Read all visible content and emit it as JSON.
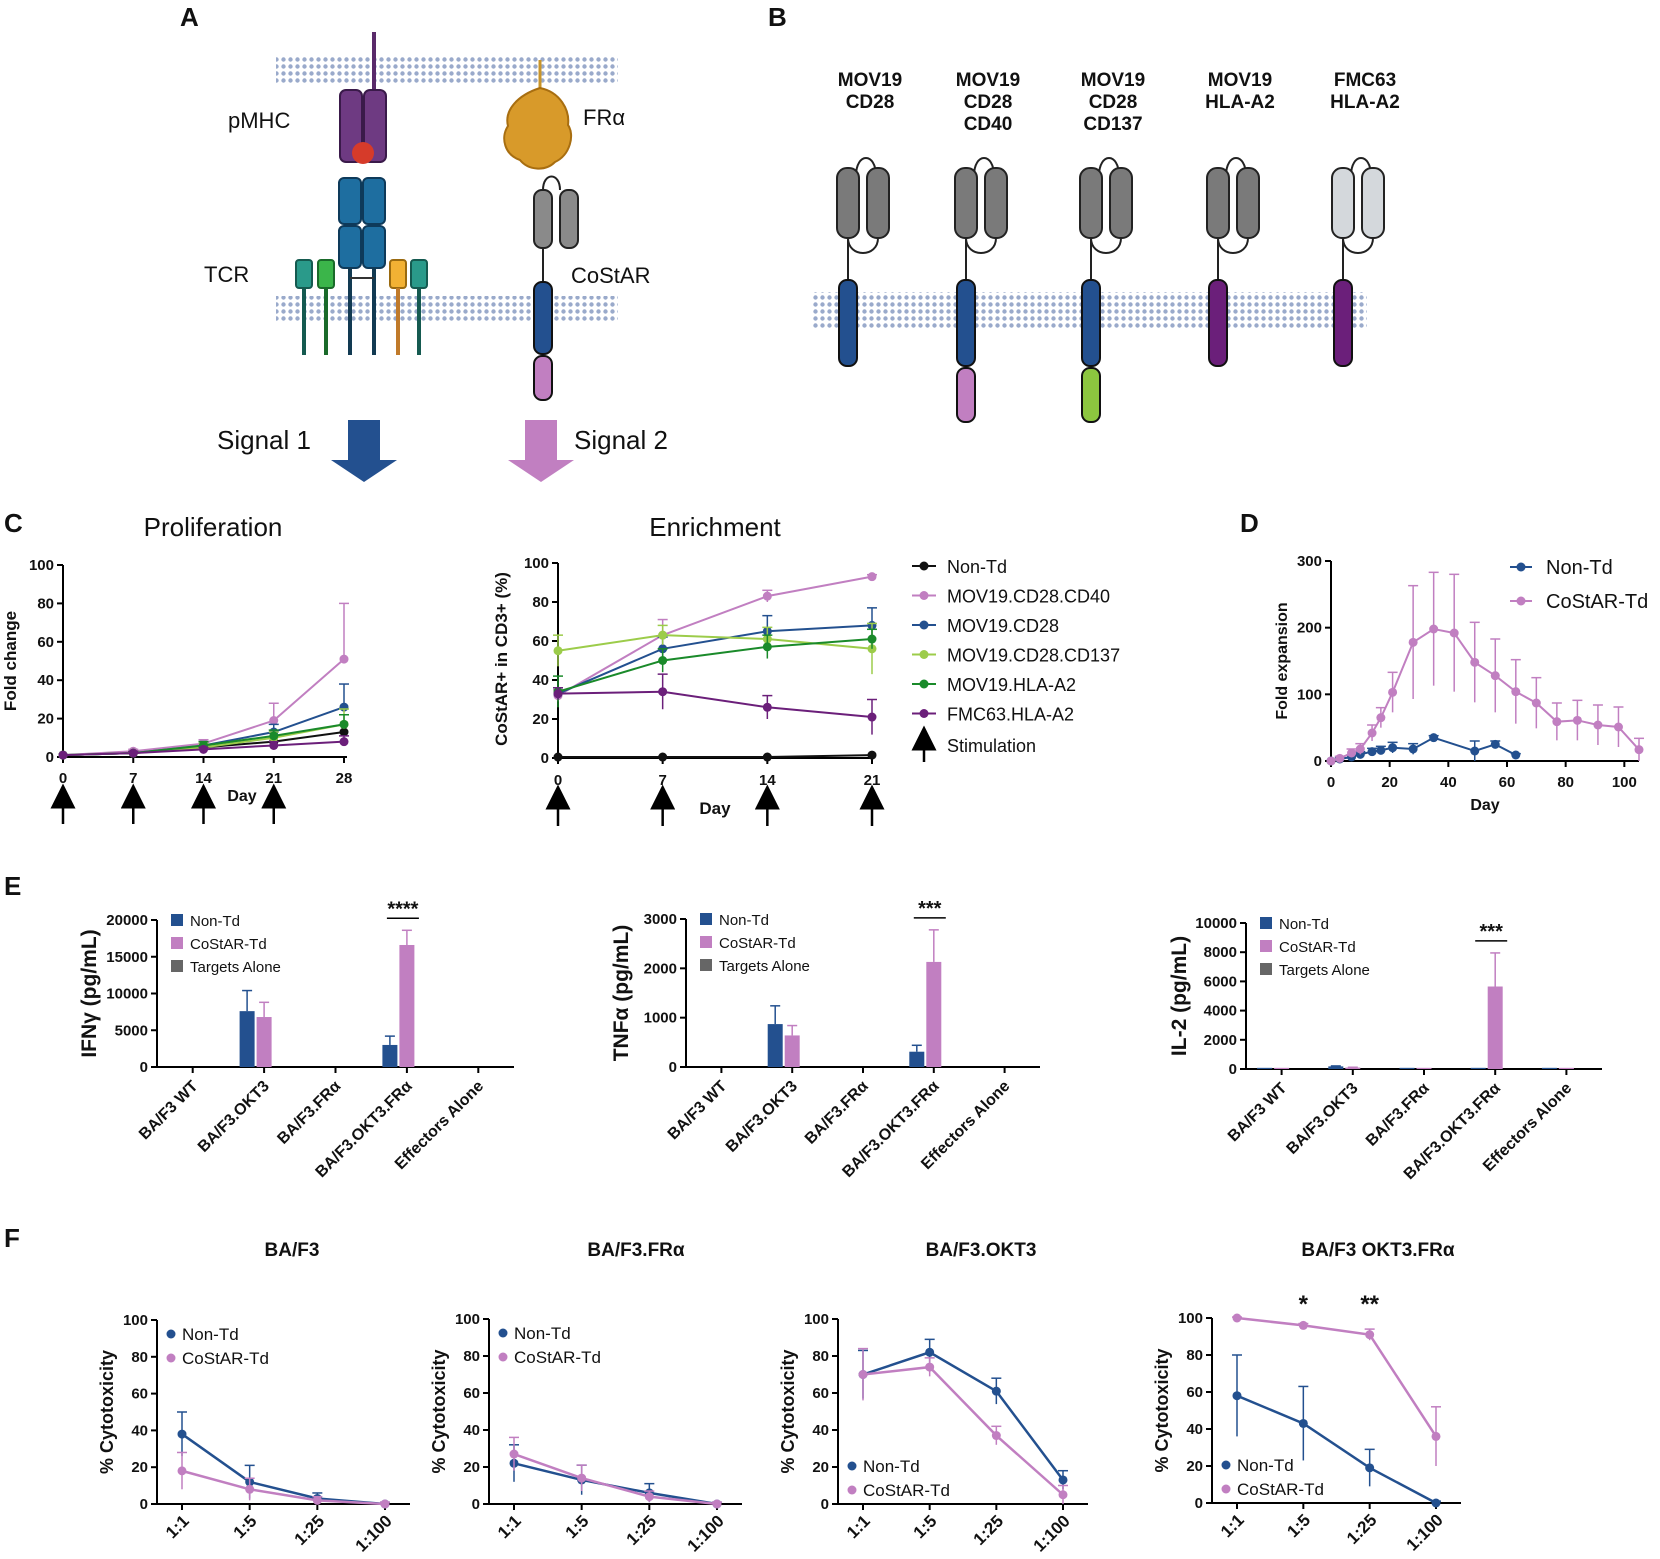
{
  "panel_labels": {
    "a": "A",
    "b": "B",
    "c": "C",
    "d": "D",
    "e": "E",
    "f": "F"
  },
  "colors": {
    "black": "#111111",
    "pink": "#c17fc1",
    "blue": "#23508f",
    "lightgreen": "#9ccc4a",
    "green": "#1a8a2a",
    "purple": "#6b1f7a",
    "grey": "#666666",
    "teal": "#1a6fa0",
    "orange": "#d4902a"
  },
  "panel_a": {
    "pmhc": "pMHC",
    "fra": "FRα",
    "tcr": "TCR",
    "costar": "CoStAR",
    "signal1": "Signal 1",
    "signal2": "Signal 2"
  },
  "panel_b": {
    "constructs": [
      {
        "line1": "MOV19",
        "line2": "CD28",
        "line3": "",
        "binder": "dark",
        "tm": "blue",
        "tail": "none"
      },
      {
        "line1": "MOV19",
        "line2": "CD28",
        "line3": "CD40",
        "binder": "dark",
        "tm": "blue",
        "tail": "pink"
      },
      {
        "line1": "MOV19",
        "line2": "CD28",
        "line3": "CD137",
        "binder": "dark",
        "tm": "blue",
        "tail": "green"
      },
      {
        "line1": "MOV19",
        "line2": "HLA-A2",
        "line3": "",
        "binder": "dark",
        "tm": "purple",
        "tail": "none"
      },
      {
        "line1": "FMC63",
        "line2": "HLA-A2",
        "line3": "",
        "binder": "light",
        "tm": "purple",
        "tail": "none"
      }
    ]
  },
  "chart_data": [
    {
      "id": "C-proliferation",
      "type": "line",
      "title": "Proliferation",
      "xlabel": "Day",
      "ylabel": "Fold change",
      "x": [
        0,
        7,
        14,
        21,
        28
      ],
      "xlim": [
        0,
        28
      ],
      "ylim": [
        0,
        100
      ],
      "yticks": [
        0,
        20,
        40,
        60,
        80,
        100
      ],
      "stimulation_days": [
        0,
        7,
        14,
        21
      ],
      "series": [
        {
          "name": "Non-Td",
          "color": "#111111",
          "values": [
            1,
            2,
            5,
            8,
            13
          ]
        },
        {
          "name": "MOV19.CD28.CD40",
          "color": "#c17fc1",
          "values": [
            1,
            3,
            7,
            19,
            51
          ],
          "err": [
            0,
            1,
            2,
            9,
            29
          ]
        },
        {
          "name": "MOV19.CD28",
          "color": "#23508f",
          "values": [
            1,
            2,
            6,
            13,
            26
          ],
          "err": [
            0,
            1,
            2,
            4,
            12
          ]
        },
        {
          "name": "MOV19.CD28.CD137",
          "color": "#9ccc4a",
          "values": [
            1,
            2,
            5,
            10,
            17
          ],
          "err": [
            0,
            1,
            2,
            3,
            8
          ]
        },
        {
          "name": "MOV19.HLA-A2",
          "color": "#1a8a2a",
          "values": [
            1,
            2,
            6,
            11,
            17
          ],
          "err": [
            0,
            1,
            2,
            3,
            5
          ]
        },
        {
          "name": "FMC63.HLA-A2",
          "color": "#6b1f7a",
          "values": [
            1,
            2,
            4,
            6,
            8
          ],
          "err": [
            0,
            1,
            1,
            2,
            3
          ]
        }
      ]
    },
    {
      "id": "C-enrichment",
      "type": "line",
      "title": "Enrichment",
      "xlabel": "Day",
      "ylabel": "CoStAR+ in CD3+ (%)",
      "x": [
        0,
        7,
        14,
        21
      ],
      "xlim": [
        0,
        21
      ],
      "ylim": [
        0,
        100
      ],
      "yticks": [
        0,
        20,
        40,
        60,
        80,
        100
      ],
      "stimulation_days": [
        0,
        7,
        14,
        21
      ],
      "series": [
        {
          "name": "Non-Td",
          "color": "#111111",
          "values": [
            0.5,
            0.5,
            0.5,
            1.5
          ],
          "err": [
            0,
            0,
            0,
            0
          ]
        },
        {
          "name": "MOV19.CD28.CD40",
          "color": "#c17fc1",
          "values": [
            32,
            63,
            83,
            93
          ],
          "err": [
            3,
            8,
            3,
            1
          ]
        },
        {
          "name": "MOV19.CD28",
          "color": "#23508f",
          "values": [
            33,
            56,
            65,
            68
          ],
          "err": [
            3,
            6,
            8,
            9
          ]
        },
        {
          "name": "MOV19.CD28.CD137",
          "color": "#9ccc4a",
          "values": [
            55,
            63,
            61,
            56
          ],
          "err": [
            8,
            5,
            6,
            13
          ]
        },
        {
          "name": "MOV19.HLA-A2",
          "color": "#1a8a2a",
          "values": [
            34,
            50,
            57,
            61
          ],
          "err": [
            8,
            6,
            6,
            5
          ]
        },
        {
          "name": "FMC63.HLA-A2",
          "color": "#6b1f7a",
          "values": [
            33,
            34,
            26,
            21
          ],
          "err": [
            3,
            9,
            6,
            9
          ]
        }
      ],
      "legend": [
        "Non-Td",
        "MOV19.CD28.CD40",
        "MOV19.CD28",
        "MOV19.CD28.CD137",
        "MOV19.HLA-A2",
        "FMC63.HLA-A2"
      ],
      "stimulation_label": "Stimulation"
    },
    {
      "id": "D",
      "type": "line",
      "title": "",
      "xlabel": "Day",
      "ylabel": "Fold expansion",
      "xlim": [
        0,
        105
      ],
      "ylim": [
        0,
        300
      ],
      "xticks": [
        0,
        20,
        40,
        60,
        80,
        100
      ],
      "yticks": [
        0,
        100,
        200,
        300
      ],
      "series": [
        {
          "name": "Non-Td",
          "color": "#23508f",
          "x": [
            0,
            3,
            7,
            10,
            14,
            17,
            21,
            28,
            35,
            49,
            56,
            63
          ],
          "values": [
            0,
            3,
            6,
            10,
            14,
            16,
            20,
            18,
            35,
            15,
            25,
            9
          ],
          "err": [
            0,
            2,
            3,
            4,
            5,
            6,
            8,
            8,
            3,
            15,
            5,
            2
          ]
        },
        {
          "name": "CoStAR-Td",
          "color": "#c17fc1",
          "x": [
            0,
            3,
            7,
            10,
            14,
            17,
            21,
            28,
            35,
            42,
            49,
            56,
            63,
            70,
            77,
            84,
            91,
            98,
            105
          ],
          "values": [
            0,
            4,
            12,
            18,
            42,
            65,
            103,
            178,
            198,
            192,
            148,
            128,
            104,
            87,
            59,
            61,
            54,
            51,
            17
          ],
          "err": [
            0,
            3,
            6,
            8,
            12,
            15,
            30,
            85,
            85,
            88,
            60,
            55,
            48,
            38,
            28,
            30,
            30,
            30,
            17
          ]
        }
      ]
    },
    {
      "id": "E-IFNg",
      "type": "bar",
      "ylabel": "IFNγ (pg/mL)",
      "ylim": [
        0,
        20000
      ],
      "yticks": [
        0,
        5000,
        10000,
        15000,
        20000
      ],
      "categories": [
        "BA/F3 WT",
        "BA/F3.OKT3",
        "BA/F3.FRα",
        "BA/F3.OKT3.FRα",
        "Effectors Alone"
      ],
      "series": [
        {
          "name": "Non-Td",
          "color": "#23508f",
          "values": [
            0,
            7600,
            0,
            3000,
            0
          ],
          "err": [
            0,
            2800,
            0,
            1200,
            0
          ]
        },
        {
          "name": "CoStAR-Td",
          "color": "#c17fc1",
          "values": [
            0,
            6800,
            0,
            16600,
            0
          ],
          "err": [
            0,
            2000,
            0,
            2000,
            0
          ]
        },
        {
          "name": "Targets Alone",
          "color": "#666666",
          "values": [
            0,
            0,
            0,
            0,
            0
          ],
          "err": [
            0,
            0,
            0,
            0,
            0
          ]
        }
      ],
      "significance": {
        "category_index": 3,
        "label": "****"
      }
    },
    {
      "id": "E-TNFa",
      "type": "bar",
      "ylabel": "TNFα (pg/mL)",
      "ylim": [
        0,
        3000
      ],
      "yticks": [
        0,
        1000,
        2000,
        3000
      ],
      "categories": [
        "BA/F3 WT",
        "BA/F3.OKT3",
        "BA/F3.FRα",
        "BA/F3.OKT3.FRα",
        "Effectors Alone"
      ],
      "series": [
        {
          "name": "Non-Td",
          "color": "#23508f",
          "values": [
            0,
            870,
            0,
            310,
            0
          ],
          "err": [
            0,
            370,
            0,
            130,
            0
          ]
        },
        {
          "name": "CoStAR-Td",
          "color": "#c17fc1",
          "values": [
            0,
            640,
            0,
            2130,
            0
          ],
          "err": [
            0,
            200,
            0,
            650,
            0
          ]
        },
        {
          "name": "Targets Alone",
          "color": "#666666",
          "values": [
            0,
            0,
            0,
            0,
            0
          ],
          "err": [
            0,
            0,
            0,
            0,
            0
          ]
        }
      ],
      "significance": {
        "category_index": 3,
        "label": "***"
      }
    },
    {
      "id": "E-IL2",
      "type": "bar",
      "ylabel": "IL-2 (pg/mL)",
      "ylim": [
        0,
        10000
      ],
      "yticks": [
        0,
        2000,
        4000,
        6000,
        8000,
        10000
      ],
      "categories": [
        "BA/F3 WT",
        "BA/F3.OKT3",
        "BA/F3.FRα",
        "BA/F3.OKT3.FRα",
        "Effectors Alone"
      ],
      "series": [
        {
          "name": "Non-Td",
          "color": "#23508f",
          "values": [
            80,
            180,
            80,
            80,
            80
          ],
          "err": [
            0,
            30,
            0,
            0,
            0
          ]
        },
        {
          "name": "CoStAR-Td",
          "color": "#c17fc1",
          "values": [
            80,
            100,
            80,
            5650,
            80
          ],
          "err": [
            0,
            20,
            0,
            2300,
            0
          ]
        },
        {
          "name": "Targets Alone",
          "color": "#666666",
          "values": [
            0,
            0,
            0,
            0,
            0
          ],
          "err": [
            0,
            0,
            0,
            0,
            0
          ]
        }
      ],
      "significance": {
        "category_index": 3,
        "label": "***"
      }
    },
    {
      "id": "F-BAF3",
      "type": "line",
      "title": "BA/F3",
      "ylabel": "% Cytotoxicity",
      "ylim": [
        0,
        100
      ],
      "yticks": [
        0,
        20,
        40,
        60,
        80,
        100
      ],
      "categories": [
        "1:1",
        "1:5",
        "1:25",
        "1:100"
      ],
      "legend_pos": "top-left",
      "series": [
        {
          "name": "Non-Td",
          "color": "#23508f",
          "values": [
            38,
            12,
            3,
            0
          ],
          "err": [
            12,
            9,
            3,
            1
          ]
        },
        {
          "name": "CoStAR-Td",
          "color": "#c17fc1",
          "values": [
            18,
            8,
            2,
            0
          ],
          "err": [
            10,
            6,
            2,
            1
          ]
        }
      ]
    },
    {
      "id": "F-BAF3-FRa",
      "type": "line",
      "title": "BA/F3.FRα",
      "ylabel": "% Cytotoxicity",
      "ylim": [
        0,
        100
      ],
      "yticks": [
        0,
        20,
        40,
        60,
        80,
        100
      ],
      "categories": [
        "1:1",
        "1:5",
        "1:25",
        "1:100"
      ],
      "legend_pos": "top-left",
      "series": [
        {
          "name": "Non-Td",
          "color": "#23508f",
          "values": [
            22,
            13,
            6,
            0
          ],
          "err": [
            10,
            8,
            5,
            1
          ]
        },
        {
          "name": "CoStAR-Td",
          "color": "#c17fc1",
          "values": [
            27,
            14,
            4,
            0
          ],
          "err": [
            9,
            7,
            3,
            1
          ]
        }
      ]
    },
    {
      "id": "F-BAF3-OKT3",
      "type": "line",
      "title": "BA/F3.OKT3",
      "ylabel": "% Cytotoxicity",
      "ylim": [
        0,
        100
      ],
      "yticks": [
        0,
        20,
        40,
        60,
        80,
        100
      ],
      "categories": [
        "1:1",
        "1:5",
        "1:25",
        "1:100"
      ],
      "legend_pos": "bottom-left",
      "series": [
        {
          "name": "Non-Td",
          "color": "#23508f",
          "values": [
            70,
            82,
            61,
            13
          ],
          "err": [
            13,
            7,
            7,
            5
          ]
        },
        {
          "name": "CoStAR-Td",
          "color": "#c17fc1",
          "values": [
            70,
            74,
            37,
            5
          ],
          "err": [
            14,
            5,
            5,
            5
          ]
        }
      ]
    },
    {
      "id": "F-BAF3-OKT3-FRa",
      "type": "line",
      "title": "BA/F3 OKT3.FRα",
      "ylabel": "% Cytotoxicity",
      "ylim": [
        0,
        100
      ],
      "yticks": [
        0,
        20,
        40,
        60,
        80,
        100
      ],
      "categories": [
        "1:1",
        "1:5",
        "1:25",
        "1:100"
      ],
      "legend_pos": "bottom-left",
      "series": [
        {
          "name": "Non-Td",
          "color": "#23508f",
          "values": [
            58,
            43,
            19,
            0
          ],
          "err": [
            22,
            20,
            10,
            1
          ]
        },
        {
          "name": "CoStAR-Td",
          "color": "#c17fc1",
          "values": [
            100,
            96,
            91,
            36
          ],
          "err": [
            1,
            1,
            3,
            16
          ]
        }
      ],
      "significance": [
        {
          "category_index": 1,
          "label": "*"
        },
        {
          "category_index": 2,
          "label": "**"
        }
      ]
    }
  ]
}
